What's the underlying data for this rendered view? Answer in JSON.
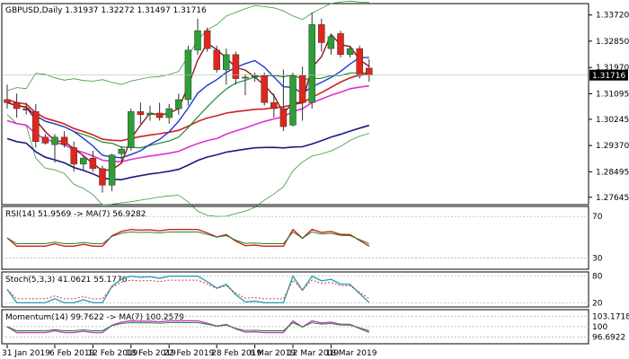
{
  "chart_data": {
    "type": "candlestick",
    "header": "GBPUSD,Daily  1.31937 1.32272 1.31497 1.31716",
    "current_price": "1.31716",
    "price_axis": [
      "1.33720",
      "1.32850",
      "1.31970",
      "1.31095",
      "1.30245",
      "1.29370",
      "1.28495",
      "1.27645"
    ],
    "ylim": [
      1.274,
      1.341
    ],
    "date_labels": [
      "31 Jan 2019",
      "6 Feb 2019",
      "12 Feb 2019",
      "18 Feb 2019",
      "22 Feb 2019",
      "28 Feb 2019",
      "6 Mar 2019",
      "12 Mar 2019",
      "18 Mar 2019"
    ],
    "date_label_index": [
      0,
      5,
      9,
      13,
      17,
      22,
      26,
      30,
      34
    ],
    "candles": [
      {
        "o": 1.309,
        "h": 1.314,
        "l": 1.306,
        "c": 1.308
      },
      {
        "o": 1.308,
        "h": 1.311,
        "l": 1.303,
        "c": 1.306
      },
      {
        "o": 1.306,
        "h": 1.308,
        "l": 1.304,
        "c": 1.3055
      },
      {
        "o": 1.305,
        "h": 1.3075,
        "l": 1.293,
        "c": 1.295
      },
      {
        "o": 1.2965,
        "h": 1.2975,
        "l": 1.294,
        "c": 1.2945
      },
      {
        "o": 1.294,
        "h": 1.2975,
        "l": 1.288,
        "c": 1.2965
      },
      {
        "o": 1.2965,
        "h": 1.2985,
        "l": 1.293,
        "c": 1.294
      },
      {
        "o": 1.293,
        "h": 1.295,
        "l": 1.285,
        "c": 1.2875
      },
      {
        "o": 1.2875,
        "h": 1.2905,
        "l": 1.2855,
        "c": 1.2895
      },
      {
        "o": 1.2895,
        "h": 1.292,
        "l": 1.285,
        "c": 1.286
      },
      {
        "o": 1.286,
        "h": 1.287,
        "l": 1.278,
        "c": 1.2805
      },
      {
        "o": 1.2805,
        "h": 1.291,
        "l": 1.2785,
        "c": 1.2905
      },
      {
        "o": 1.291,
        "h": 1.2935,
        "l": 1.2885,
        "c": 1.2925
      },
      {
        "o": 1.293,
        "h": 1.306,
        "l": 1.292,
        "c": 1.305
      },
      {
        "o": 1.305,
        "h": 1.308,
        "l": 1.301,
        "c": 1.304
      },
      {
        "o": 1.304,
        "h": 1.307,
        "l": 1.302,
        "c": 1.3045
      },
      {
        "o": 1.3045,
        "h": 1.308,
        "l": 1.302,
        "c": 1.303
      },
      {
        "o": 1.303,
        "h": 1.3075,
        "l": 1.301,
        "c": 1.306
      },
      {
        "o": 1.306,
        "h": 1.311,
        "l": 1.304,
        "c": 1.309
      },
      {
        "o": 1.309,
        "h": 1.327,
        "l": 1.307,
        "c": 1.3255
      },
      {
        "o": 1.3255,
        "h": 1.336,
        "l": 1.324,
        "c": 1.332
      },
      {
        "o": 1.332,
        "h": 1.333,
        "l": 1.325,
        "c": 1.326
      },
      {
        "o": 1.3255,
        "h": 1.327,
        "l": 1.318,
        "c": 1.319
      },
      {
        "o": 1.319,
        "h": 1.326,
        "l": 1.314,
        "c": 1.324
      },
      {
        "o": 1.324,
        "h": 1.325,
        "l": 1.314,
        "c": 1.316
      },
      {
        "o": 1.3165,
        "h": 1.3175,
        "l": 1.3105,
        "c": 1.3165
      },
      {
        "o": 1.3165,
        "h": 1.318,
        "l": 1.315,
        "c": 1.317
      },
      {
        "o": 1.317,
        "h": 1.318,
        "l": 1.307,
        "c": 1.308
      },
      {
        "o": 1.308,
        "h": 1.311,
        "l": 1.303,
        "c": 1.306
      },
      {
        "o": 1.306,
        "h": 1.319,
        "l": 1.2985,
        "c": 1.3
      },
      {
        "o": 1.3005,
        "h": 1.318,
        "l": 1.3,
        "c": 1.317
      },
      {
        "o": 1.317,
        "h": 1.32,
        "l": 1.302,
        "c": 1.308
      },
      {
        "o": 1.308,
        "h": 1.338,
        "l": 1.306,
        "c": 1.334
      },
      {
        "o": 1.334,
        "h": 1.336,
        "l": 1.325,
        "c": 1.328
      },
      {
        "o": 1.326,
        "h": 1.331,
        "l": 1.324,
        "c": 1.33
      },
      {
        "o": 1.331,
        "h": 1.332,
        "l": 1.323,
        "c": 1.324
      },
      {
        "o": 1.324,
        "h": 1.327,
        "l": 1.323,
        "c": 1.326
      },
      {
        "o": 1.326,
        "h": 1.327,
        "l": 1.316,
        "c": 1.317
      },
      {
        "o": 1.3195,
        "h": 1.3225,
        "l": 1.315,
        "c": 1.3172
      }
    ],
    "bull_color": "#2e9e36",
    "bear_color": "#e0261c",
    "panels": [
      {
        "label": "RSI(14) 51.9569  -> MA(7) 56.9282",
        "levels": [
          "70",
          "30"
        ]
      },
      {
        "label": "Stoch(5,3,3) 41.0621 55.1776",
        "levels": [
          "80",
          "20"
        ]
      },
      {
        "label": "Momentum(14) 99.7622  -> MA(7) 100.2579",
        "levels": [
          "103.1718",
          "100",
          "96.6922"
        ]
      }
    ]
  }
}
